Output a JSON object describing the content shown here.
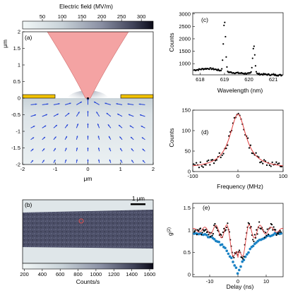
{
  "colorbar_top": {
    "label": "Electric field (MV/m)",
    "ticks": [
      50,
      100,
      150,
      200,
      250,
      300
    ],
    "range": [
      0,
      330
    ]
  },
  "colorbar_bottom": {
    "label": "Counts/s",
    "ticks": [
      200,
      400,
      600,
      800,
      1000,
      1200,
      1400,
      1600
    ],
    "range": [
      180,
      1640
    ]
  },
  "chart_data": [
    {
      "panel": "(a)",
      "type": "heatmap",
      "xlabel": "μm",
      "ylabel": "μm",
      "xlim": [
        -2,
        2
      ],
      "ylim": [
        -2,
        2
      ],
      "xticks": [
        -2,
        -1,
        0,
        1,
        2
      ],
      "yticks": [
        -2,
        -1.5,
        -1,
        -0.5,
        0,
        0.5,
        1,
        1.5,
        2
      ],
      "xtick_labels": [
        "-2",
        "-1",
        "0",
        "1",
        "2"
      ],
      "ytick_labels": [
        "-2",
        "-1.5",
        "-1",
        "-0.5",
        "0",
        "0.5",
        "1",
        "1.5",
        "2"
      ],
      "mask_edges": [
        -1,
        1
      ],
      "quiver_x": [
        -1.75,
        -1.4,
        -1.05,
        -0.7,
        -0.35,
        0,
        0.35,
        0.7,
        1.05,
        1.4,
        1.75
      ],
      "quiver_y": [
        -0.2,
        -0.55,
        -0.9,
        -1.25,
        -1.6,
        -1.95
      ]
    },
    {
      "panel": "(b)",
      "type": "heatmap",
      "scalebar_label": "1 μm"
    },
    {
      "panel": "(c)",
      "type": "scatter",
      "xlabel": "Wavelength (nm)",
      "ylabel": "Counts",
      "xlim": [
        617.7,
        621.4
      ],
      "ylim": [
        550,
        3050
      ],
      "xticks": [
        618,
        619,
        620,
        621
      ],
      "yticks": [
        1000,
        1500,
        2000,
        2500,
        3000
      ],
      "xtick_labels": [
        "618",
        "619",
        "620",
        "621"
      ],
      "ytick_labels": [
        "1000",
        "1500",
        "2000",
        "2500",
        "3000"
      ],
      "peaks": [
        {
          "x": 619.0,
          "y": 2750
        },
        {
          "x": 620.2,
          "y": 1850
        }
      ],
      "baseline": 700
    },
    {
      "panel": "(d)",
      "type": "scatter",
      "xlabel": "Frequency (MHz)",
      "ylabel": "Counts",
      "xlim": [
        -100,
        100
      ],
      "ylim": [
        0,
        150
      ],
      "xticks": [
        -100,
        0,
        100
      ],
      "yticks": [
        0,
        50,
        100,
        150
      ],
      "xtick_labels": [
        "-100",
        "0",
        "100"
      ],
      "ytick_labels": [
        "0",
        "50",
        "100",
        "150"
      ],
      "peak": {
        "x": 0,
        "y": 140
      },
      "background": 8
    },
    {
      "panel": "(e)",
      "type": "scatter",
      "xlabel": "Delay (ns)",
      "ylabel": "g(2)",
      "xlim": [
        -16,
        16
      ],
      "ylim": [
        -0.05,
        1.6
      ],
      "xticks": [
        -10,
        0,
        10
      ],
      "yticks": [
        0,
        0.5,
        1,
        1.5
      ],
      "xtick_labels": [
        "-10",
        "0",
        "10"
      ],
      "ytick_labels": [
        "0",
        "0.5",
        "1",
        "1.5"
      ],
      "dip_min": 0.03
    }
  ],
  "colors": {
    "cone": "#f4a3a3",
    "cone_edge": "#cf7070",
    "mask": "#f2c200",
    "arrows": "#1f3fd6",
    "data": "#000000",
    "fit": "#e04040",
    "blue_points": "#1a82c4",
    "emitter": "#e05050"
  }
}
